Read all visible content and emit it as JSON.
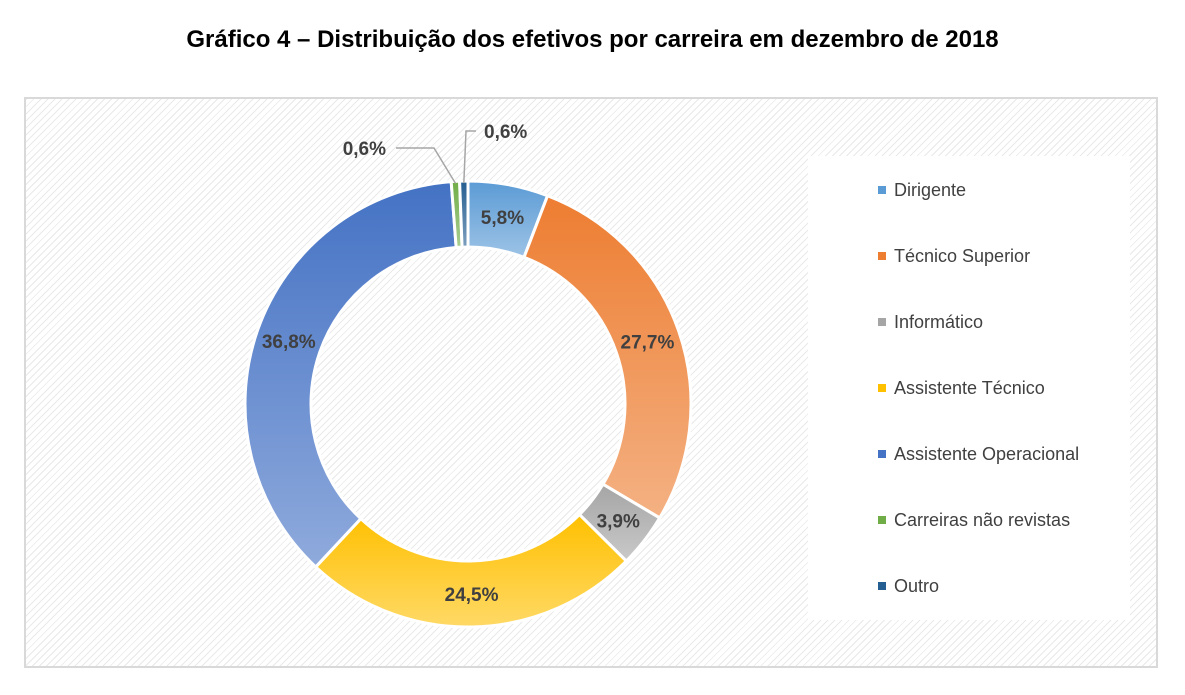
{
  "chart_data": {
    "type": "pie",
    "title": "Gráfico 4 – Distribuição dos efetivos por carreira em dezembro de 2018",
    "legend_position": "right",
    "donut": true,
    "categories": [
      "Dirigente",
      "Técnico Superior",
      "Informático",
      "Assistente Técnico",
      "Assistente Operacional",
      "Carreiras não revistas",
      "Outro"
    ],
    "values": [
      5.8,
      27.7,
      3.9,
      24.5,
      36.8,
      0.6,
      0.6
    ],
    "labels": [
      "5,8%",
      "27,7%",
      "3,9%",
      "24,5%",
      "36,8%",
      "0,6%",
      "0,6%"
    ],
    "colors": [
      "#5b9bd5",
      "#ed7d31",
      "#a5a5a5",
      "#ffc000",
      "#4472c4",
      "#70ad47",
      "#255e91"
    ]
  }
}
